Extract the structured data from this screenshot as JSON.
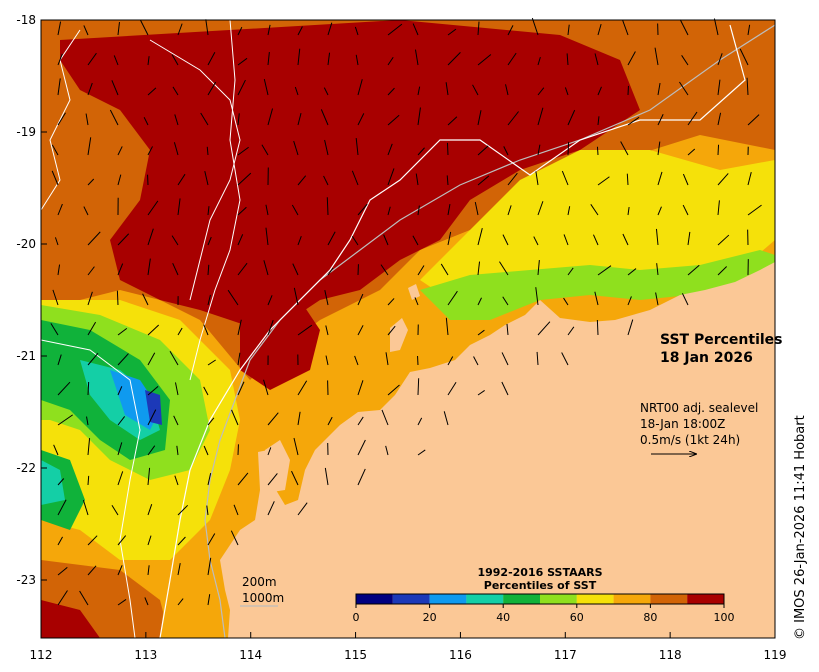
{
  "map": {
    "title_line1": "SST Percentiles",
    "title_line2": "18 Jan 2026",
    "info_line1": "NRT00 adj. sealevel",
    "info_line2": "18-Jan 18:00Z",
    "info_line3": "0.5m/s (1kt 24h)",
    "scale_label_200": "200m",
    "scale_label_1000": "1000m",
    "credit": "© IMOS 26-Jan-2026 11:41 Hobart",
    "x_ticks": [
      "112",
      "113",
      "114",
      "115",
      "116",
      "117",
      "118",
      "119"
    ],
    "y_ticks": [
      "-18",
      "-19",
      "-20",
      "-21",
      "-22",
      "-23"
    ],
    "land_color": "#fbc896",
    "legend": {
      "title_line1": "1992-2016 SSTAARS",
      "title_line2": "Percentiles of SST",
      "ticks": [
        "0",
        "20",
        "40",
        "60",
        "80",
        "100"
      ],
      "colors": [
        "#000080",
        "#1c39b8",
        "#0f9aef",
        "#14cfa6",
        "#10b23a",
        "#8fe01e",
        "#f5e10a",
        "#f5a70a",
        "#d26406",
        "#a80000"
      ]
    }
  }
}
